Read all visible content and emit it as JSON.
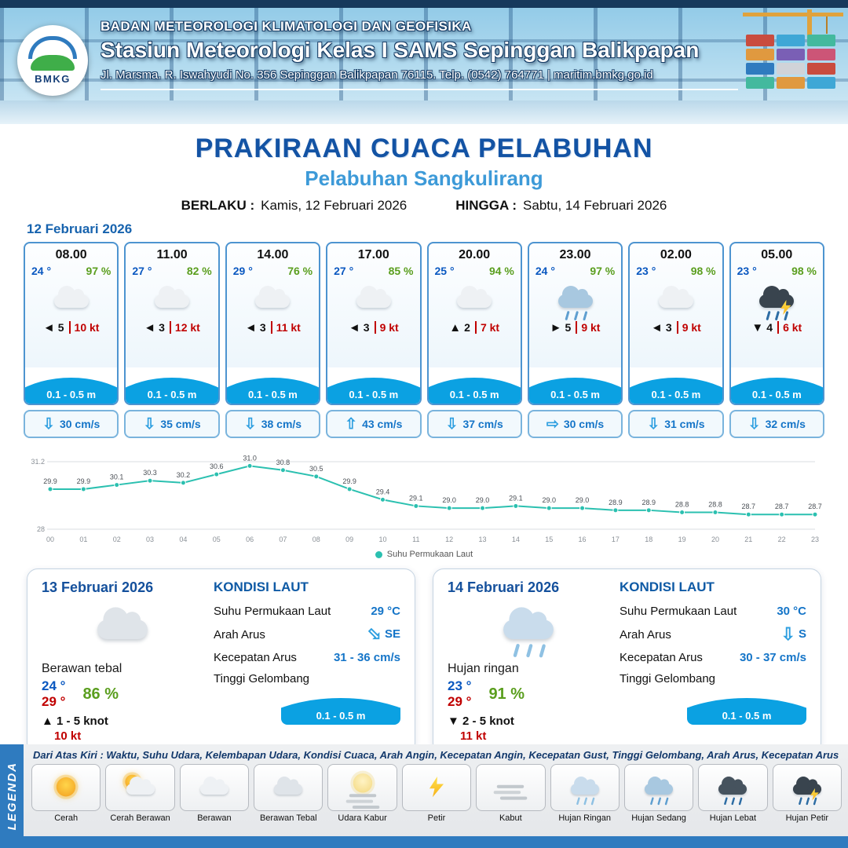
{
  "colors": {
    "accent_navy": "#1353a4",
    "accent_blue": "#3d9ad8",
    "wave_blue": "#0ba1e2",
    "chart_teal": "#2bc0b0",
    "temp_blue": "#0a58c0",
    "humidity_green": "#5a9e1e",
    "gust_red": "#c00000"
  },
  "header": {
    "logo_text": "BMKG",
    "org": "BADAN METEOROLOGI KLIMATOLOGI DAN GEOFISIKA",
    "station": "Stasiun Meteorologi Kelas I SAMS Sepinggan Balikpapan",
    "address": "Jl. Marsma. R. Iswahyudi No. 356 Sepinggan Balikpapan 76115. Telp. (0542) 764771 | maritim.bmkg.go.id"
  },
  "title": {
    "main": "PRAKIRAAN CUACA PELABUHAN",
    "sub": "Pelabuhan Sangkulirang",
    "berlaku_label": "BERLAKU :",
    "berlaku_value": "Kamis, 12 Februari 2026",
    "hingga_label": "HINGGA :",
    "hingga_value": "Sabtu, 14 Februari 2026"
  },
  "forecast_date": "12 Februari 2026",
  "cards": [
    {
      "time": "08.00",
      "temp": "24 °",
      "rh": "97 %",
      "icon": "berawan",
      "wind_arrow": "◄",
      "wind": "5",
      "gust": "10 kt",
      "wave": "0.1 - 0.5 m",
      "cur_arrow": "⇩",
      "current": "30 cm/s"
    },
    {
      "time": "11.00",
      "temp": "27 °",
      "rh": "82 %",
      "icon": "berawan",
      "wind_arrow": "◄",
      "wind": "3",
      "gust": "12 kt",
      "wave": "0.1 - 0.5 m",
      "cur_arrow": "⇩",
      "current": "35 cm/s"
    },
    {
      "time": "14.00",
      "temp": "29 °",
      "rh": "76 %",
      "icon": "berawan",
      "wind_arrow": "◄",
      "wind": "3",
      "gust": "11 kt",
      "wave": "0.1 - 0.5 m",
      "cur_arrow": "⇩",
      "current": "38 cm/s"
    },
    {
      "time": "17.00",
      "temp": "27 °",
      "rh": "85 %",
      "icon": "berawan",
      "wind_arrow": "◄",
      "wind": "3",
      "gust": "9 kt",
      "wave": "0.1 - 0.5 m",
      "cur_arrow": "⇧",
      "current": "43 cm/s"
    },
    {
      "time": "20.00",
      "temp": "25 °",
      "rh": "94 %",
      "icon": "berawan",
      "wind_arrow": "▲",
      "wind": "2",
      "gust": "7 kt",
      "wave": "0.1 - 0.5 m",
      "cur_arrow": "⇩",
      "current": "37 cm/s"
    },
    {
      "time": "23.00",
      "temp": "24 °",
      "rh": "97 %",
      "icon": "hujan-sedang",
      "wind_arrow": "►",
      "wind": "5",
      "gust": "9 kt",
      "wave": "0.1 - 0.5 m",
      "cur_arrow": "⇨",
      "current": "30 cm/s"
    },
    {
      "time": "02.00",
      "temp": "23 °",
      "rh": "98 %",
      "icon": "berawan",
      "wind_arrow": "◄",
      "wind": "3",
      "gust": "9 kt",
      "wave": "0.1 - 0.5 m",
      "cur_arrow": "⇩",
      "current": "31 cm/s"
    },
    {
      "time": "05.00",
      "temp": "23 °",
      "rh": "98 %",
      "icon": "hujan-petir",
      "wind_arrow": "▼",
      "wind": "4",
      "gust": "6 kt",
      "wave": "0.1 - 0.5 m",
      "cur_arrow": "⇩",
      "current": "32 cm/s"
    }
  ],
  "chart_data": {
    "type": "line",
    "title": "",
    "x": [
      "00",
      "01",
      "02",
      "03",
      "04",
      "05",
      "06",
      "07",
      "08",
      "09",
      "10",
      "11",
      "12",
      "13",
      "14",
      "15",
      "16",
      "17",
      "18",
      "19",
      "20",
      "21",
      "22",
      "23"
    ],
    "series": [
      {
        "name": "Suhu Permukaan Laut",
        "values": [
          29.9,
          29.9,
          30.1,
          30.3,
          30.2,
          30.6,
          31.0,
          30.8,
          30.5,
          29.9,
          29.4,
          29.1,
          29.0,
          29.0,
          29.1,
          29.0,
          29.0,
          28.9,
          28.9,
          28.8,
          28.8,
          28.7,
          28.7,
          28.7
        ]
      }
    ],
    "ylim": [
      28,
      31.2
    ],
    "xlabel": "",
    "ylabel": "",
    "grid": true,
    "line_color": "#2bc0b0",
    "legend": "Suhu Permukaan Laut",
    "legend_position": "bottom"
  },
  "day_cards": [
    {
      "date": "13 Februari 2026",
      "icon": "berawan-tebal",
      "condition": "Berawan tebal",
      "temp_min": "24 °",
      "temp_max": "29 °",
      "rh": "86 %",
      "wind_arrow": "▲",
      "wind": "1 - 5 knot",
      "gust": "10 kt",
      "sea": {
        "title": "KONDISI LAUT",
        "sst_label": "Suhu Permukaan Laut",
        "sst": "29 °C",
        "dir_label": "Arah Arus",
        "dir_arrow": "⇨",
        "dir_deg": 45,
        "dir": "SE",
        "spd_label": "Kecepatan Arus",
        "spd": "31 - 36 cm/s",
        "wave_label": "Tinggi Gelombang",
        "wave": "0.1 - 0.5 m"
      }
    },
    {
      "date": "14 Februari 2026",
      "icon": "hujan-ringan",
      "condition": "Hujan ringan",
      "temp_min": "23 °",
      "temp_max": "29 °",
      "rh": "91 %",
      "wind_arrow": "▼",
      "wind": "2 - 5 knot",
      "gust": "11 kt",
      "sea": {
        "title": "KONDISI LAUT",
        "sst_label": "Suhu Permukaan Laut",
        "sst": "30 °C",
        "dir_label": "Arah Arus",
        "dir_arrow": "⇩",
        "dir_deg": 0,
        "dir": "S",
        "spd_label": "Kecepatan Arus",
        "spd": "30 - 37 cm/s",
        "wave_label": "Tinggi Gelombang",
        "wave": "0.1 - 0.5 m"
      }
    }
  ],
  "legend_bar": {
    "sidebar": "LEGENDA",
    "note": "Dari Atas Kiri : Waktu, Suhu Udara, Kelembapan Udara, Kondisi Cuaca, Arah Angin, Kecepatan Angin, Kecepatan Gust, Tinggi Gelombang, Arah Arus, Kecepatan Arus",
    "items": [
      {
        "label": "Cerah",
        "icon": "cerah"
      },
      {
        "label": "Cerah Berawan",
        "icon": "cerah-berawan"
      },
      {
        "label": "Berawan",
        "icon": "berawan"
      },
      {
        "label": "Berawan Tebal",
        "icon": "berawan-tebal"
      },
      {
        "label": "Udara Kabur",
        "icon": "udara-kabur"
      },
      {
        "label": "Petir",
        "icon": "petir"
      },
      {
        "label": "Kabut",
        "icon": "kabut"
      },
      {
        "label": "Hujan Ringan",
        "icon": "hujan-ringan"
      },
      {
        "label": "Hujan Sedang",
        "icon": "hujan-sedang"
      },
      {
        "label": "Hujan Lebat",
        "icon": "hujan-lebat"
      },
      {
        "label": "Hujan Petir",
        "icon": "hujan-petir"
      }
    ]
  }
}
